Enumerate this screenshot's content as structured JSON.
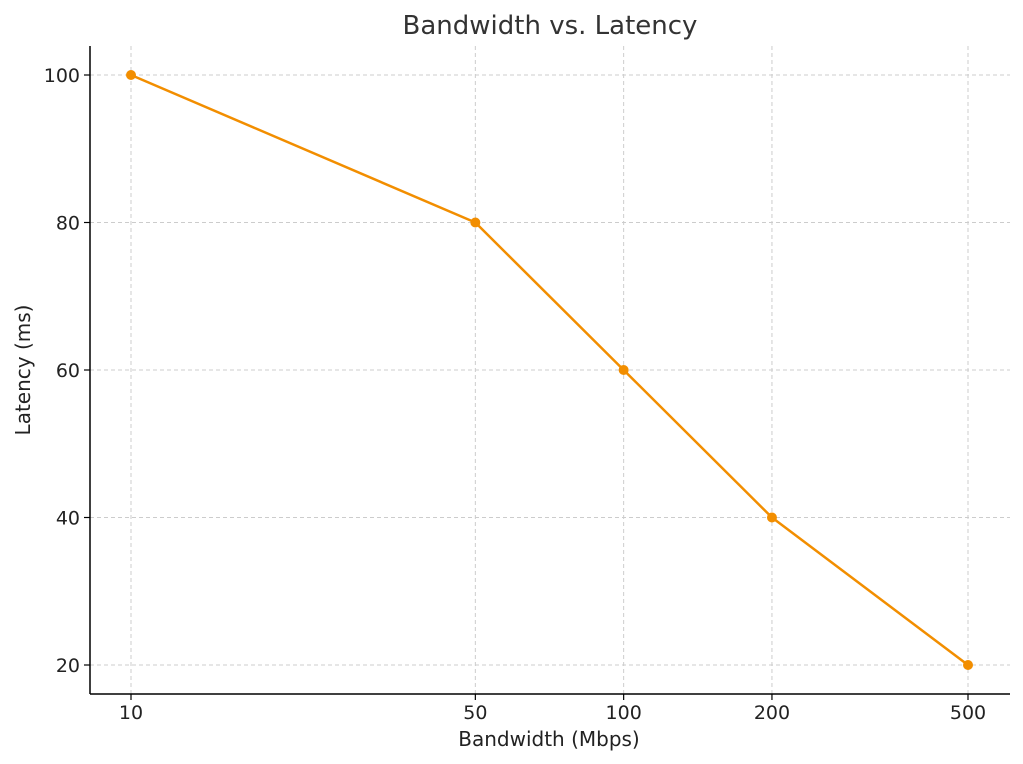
{
  "chart_data": {
    "type": "line",
    "title": "Bandwidth vs. Latency",
    "xlabel": "Bandwidth (Mbps)",
    "ylabel": "Latency (ms)",
    "x_scale": "log",
    "x": [
      10,
      50,
      100,
      200,
      500
    ],
    "series": [
      {
        "values": [
          100,
          80,
          60,
          40,
          20
        ],
        "color": "#f28e00",
        "marker": "circle"
      }
    ],
    "x_ticks": [
      10,
      50,
      100,
      200,
      500
    ],
    "y_ticks": [
      20,
      40,
      60,
      80,
      100
    ],
    "xlim": [
      10,
      500
    ],
    "ylim": [
      20,
      100
    ],
    "grid": true,
    "legend": "none"
  }
}
